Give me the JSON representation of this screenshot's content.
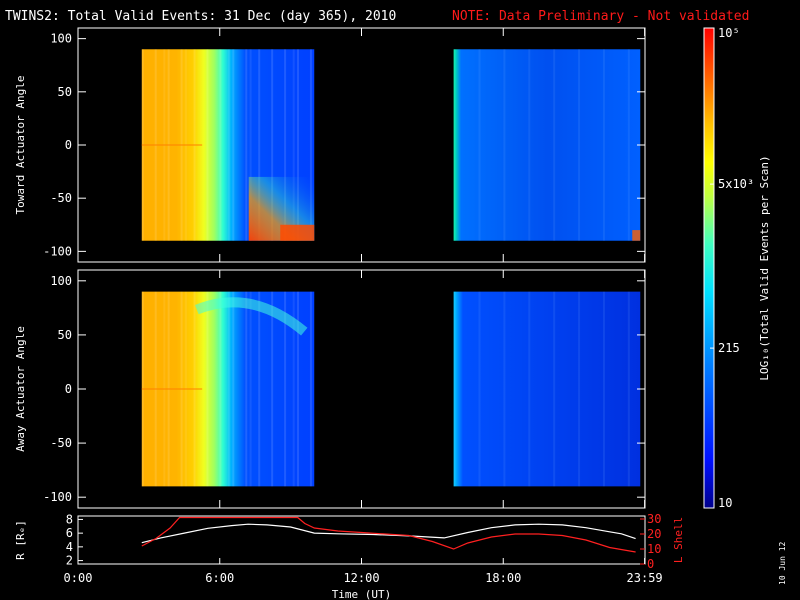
{
  "title": "TWINS2: Total Valid Events: 31 Dec (day 365), 2010",
  "note": "NOTE: Data Preliminary - Not validated",
  "date_stamp": "10 Jun 12",
  "colors": {
    "background": "#000000",
    "axes": "#ffffff",
    "note": "#ff1a1a",
    "lshell": "#ff2020",
    "radius": "#ffffff"
  },
  "chart_data": [
    {
      "type": "heatmap",
      "name": "toward",
      "ylabel": "Toward Actuator Angle",
      "ylim": [
        -110,
        110
      ],
      "yticks": [
        100,
        50,
        0,
        -50,
        -100
      ],
      "ytick_labels": [
        "100",
        "50",
        "0",
        "-50",
        "-100"
      ],
      "xlim": [
        0,
        24
      ],
      "angle_range": [
        -90,
        90
      ],
      "segments": [
        [
          2.7,
          10.0
        ],
        [
          15.9,
          23.8
        ]
      ]
    },
    {
      "type": "heatmap",
      "name": "away",
      "ylabel": "Away Actuator Angle",
      "ylim": [
        -110,
        110
      ],
      "yticks": [
        100,
        50,
        0,
        -50,
        -100
      ],
      "ytick_labels": [
        "100",
        "50",
        "0",
        "-50",
        "-100"
      ],
      "xlim": [
        0,
        24
      ],
      "angle_range": [
        -90,
        90
      ],
      "segments": [
        [
          2.7,
          10.0
        ],
        [
          15.9,
          23.8
        ]
      ]
    },
    {
      "type": "line",
      "name": "orbit",
      "xlabel": "Time (UT)",
      "xlim": [
        0,
        24
      ],
      "xticks": [
        0,
        6,
        12,
        18,
        23.983
      ],
      "xtick_labels": [
        "0:00",
        "6:00",
        "12:00",
        "18:00",
        "23:59"
      ],
      "ylabel_left": "R [Rₑ]",
      "ylim_left": [
        1.5,
        8.5
      ],
      "yticks_left": [
        2,
        4,
        6,
        8
      ],
      "ytick_labels_left": [
        "2",
        "4",
        "6",
        "8"
      ],
      "ylabel_right": "L Shell",
      "ylim_right": [
        0,
        32
      ],
      "yticks_right": [
        0,
        10,
        20,
        30
      ],
      "ytick_labels_right": [
        "0",
        "10",
        "20",
        "30"
      ],
      "series": [
        {
          "axis": "left",
          "color": "#ffffff",
          "x": [
            2.7,
            3.5,
            4.5,
            5.5,
            6.5,
            7.2,
            8.0,
            9.0,
            10.0,
            11.0,
            12.5,
            14.0,
            15.5,
            16.5,
            17.5,
            18.5,
            19.5,
            20.5,
            21.5,
            22.5,
            23.0,
            23.6
          ],
          "y": [
            4.6,
            5.3,
            6.0,
            6.7,
            7.1,
            7.3,
            7.2,
            6.9,
            6.0,
            5.9,
            5.8,
            5.6,
            5.3,
            6.1,
            6.8,
            7.2,
            7.3,
            7.2,
            6.8,
            6.2,
            5.9,
            5.2
          ]
        },
        {
          "axis": "right",
          "color": "#ff2020",
          "x": [
            2.7,
            3.3,
            3.9,
            4.3,
            9.3,
            9.6,
            10.0,
            11.0,
            12.0,
            13.0,
            14.0,
            15.0,
            15.9,
            16.5,
            17.5,
            18.5,
            19.5,
            20.5,
            21.5,
            22.5,
            23.6
          ],
          "y": [
            12,
            17,
            24,
            31,
            31,
            27,
            24,
            22,
            21,
            20,
            19,
            15,
            10,
            14,
            18,
            20,
            20,
            19,
            16,
            11,
            8
          ]
        }
      ]
    },
    {
      "type": "heatmap-colorbar",
      "name": "colorbar",
      "label": "LOG₁₀(Total Valid Events per Scan)",
      "scale": "log",
      "range": [
        10,
        100000
      ],
      "tick_values": [
        100000,
        5000,
        215,
        10
      ],
      "tick_labels": [
        "10⁵",
        "5x10³",
        "215",
        "10"
      ]
    }
  ]
}
